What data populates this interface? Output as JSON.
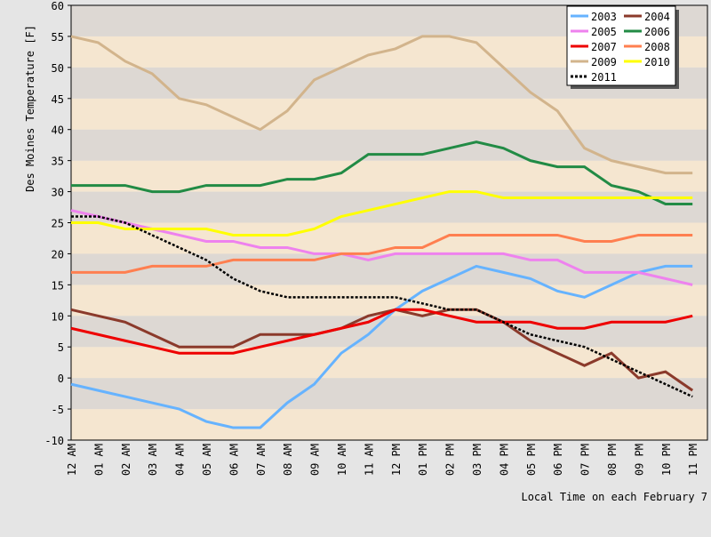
{
  "chart_data": {
    "type": "line",
    "y_label": "Des Moines Temperature [F]",
    "x_label": "Local Time on each February 7",
    "categories": [
      "12 AM",
      "01 AM",
      "02 AM",
      "03 AM",
      "04 AM",
      "05 AM",
      "06 AM",
      "07 AM",
      "08 AM",
      "09 AM",
      "10 AM",
      "11 AM",
      "12 PM",
      "01 PM",
      "02 PM",
      "03 PM",
      "04 PM",
      "05 PM",
      "06 PM",
      "07 PM",
      "08 PM",
      "09 PM",
      "10 PM",
      "11 PM"
    ],
    "series": [
      {
        "name": "2003",
        "color": "#66b3ff",
        "values": [
          -1,
          -2,
          -3,
          -4,
          -5,
          -7,
          -8,
          -8,
          -4,
          -1,
          4,
          7,
          11,
          14,
          16,
          18,
          17,
          16,
          14,
          13,
          15,
          17,
          18,
          18
        ]
      },
      {
        "name": "2004",
        "color": "#8b3a2b",
        "values": [
          11,
          10,
          9,
          7,
          5,
          5,
          5,
          7,
          7,
          7,
          8,
          10,
          11,
          10,
          11,
          11,
          9,
          6,
          4,
          2,
          4,
          0,
          1,
          -2
        ]
      },
      {
        "name": "2005",
        "color": "#ee82ee",
        "values": [
          27,
          26,
          25,
          24,
          23,
          22,
          22,
          21,
          21,
          20,
          20,
          19,
          20,
          20,
          20,
          20,
          20,
          19,
          19,
          17,
          17,
          17,
          16,
          15
        ]
      },
      {
        "name": "2006",
        "color": "#228b45",
        "values": [
          31,
          31,
          31,
          30,
          30,
          31,
          31,
          31,
          32,
          32,
          33,
          36,
          36,
          36,
          37,
          38,
          37,
          35,
          34,
          34,
          31,
          30,
          28,
          28
        ]
      },
      {
        "name": "2007",
        "color": "#ee0000",
        "values": [
          8,
          7,
          6,
          5,
          4,
          4,
          4,
          5,
          6,
          7,
          8,
          9,
          11,
          11,
          10,
          9,
          9,
          9,
          8,
          8,
          9,
          9,
          9,
          10
        ]
      },
      {
        "name": "2008",
        "color": "#ff7f50",
        "values": [
          17,
          17,
          17,
          18,
          18,
          18,
          19,
          19,
          19,
          19,
          20,
          20,
          21,
          21,
          23,
          23,
          23,
          23,
          23,
          22,
          22,
          23,
          23,
          23
        ]
      },
      {
        "name": "2009",
        "color": "#d2b48c",
        "values": [
          55,
          54,
          51,
          49,
          45,
          44,
          42,
          40,
          43,
          48,
          50,
          52,
          53,
          55,
          55,
          54,
          50,
          46,
          43,
          37,
          35,
          34,
          33,
          33
        ]
      },
      {
        "name": "2010",
        "color": "#ffff00",
        "values": [
          25,
          25,
          24,
          24,
          24,
          24,
          23,
          23,
          23,
          24,
          26,
          27,
          28,
          29,
          30,
          30,
          29,
          29,
          29,
          29,
          29,
          29,
          29,
          29
        ]
      },
      {
        "name": "2011",
        "color": "#000000",
        "line_style": "dashed",
        "values": [
          26,
          26,
          25,
          23,
          21,
          19,
          16,
          14,
          13,
          13,
          13,
          13,
          13,
          12,
          11,
          11,
          9,
          7,
          6,
          5,
          3,
          1,
          -1,
          -3
        ]
      }
    ],
    "ylim": [
      -10,
      60
    ],
    "yticks": [
      -10,
      -5,
      0,
      5,
      10,
      15,
      20,
      25,
      30,
      35,
      40,
      45,
      50,
      55,
      60
    ],
    "grid": true,
    "legend": "upper right"
  }
}
